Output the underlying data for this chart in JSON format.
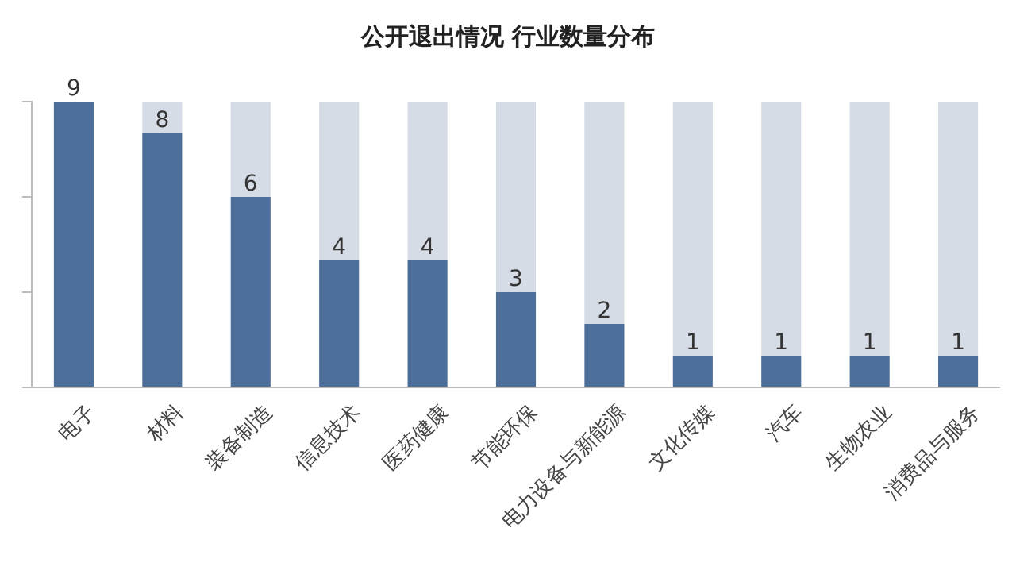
{
  "chart_data": {
    "type": "bar",
    "title": "公开退出情况 行业数量分布",
    "categories": [
      "电子",
      "材料",
      "装备制造",
      "信息技术",
      "医药健康",
      "节能环保",
      "电力设备与新能源",
      "文化传媒",
      "汽车",
      "生物农业",
      "消费品与服务"
    ],
    "stacked": true,
    "ylim": [
      0,
      9
    ],
    "yticks": [
      {
        "value": 0,
        "label": null
      },
      {
        "value": 3,
        "label": null
      },
      {
        "value": 6,
        "label": null
      },
      {
        "value": 9,
        "label": null
      }
    ],
    "tick_labels": "x",
    "grid": false,
    "series": [
      {
        "color": "#4f6f9b",
        "values": [
          9,
          8,
          6,
          4,
          4,
          3,
          2,
          1,
          1,
          1,
          1
        ],
        "value_labels": [
          "9",
          "8",
          "6",
          "4",
          "4",
          "3",
          "2",
          "1",
          "1",
          "1",
          "1"
        ]
      },
      {
        "color": "#d6dce5",
        "values": [
          0,
          1,
          3,
          5,
          5,
          6,
          7,
          8,
          8,
          8,
          8
        ]
      }
    ]
  }
}
